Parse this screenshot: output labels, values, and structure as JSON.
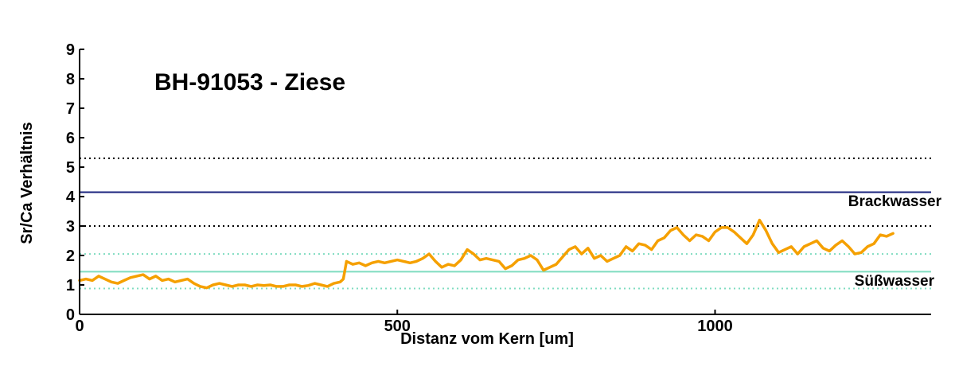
{
  "chart_data": {
    "type": "line",
    "title": "BH-91053 - Ziese",
    "xlabel": "Distanz vom Kern [um]",
    "ylabel": "Sr/Ca Verhältnis",
    "xlim": [
      0,
      1340
    ],
    "ylim": [
      0,
      9
    ],
    "x_ticks": [
      0,
      500,
      1000
    ],
    "y_ticks": [
      0,
      1,
      2,
      3,
      4,
      5,
      6,
      7,
      8,
      9
    ],
    "grid": false,
    "reference_lines": [
      {
        "name": "brackish_mean",
        "y": 4.15,
        "style": "solid",
        "color": "#1a237e"
      },
      {
        "name": "brackish_upper",
        "y": 5.3,
        "style": "dotted",
        "color": "#000000"
      },
      {
        "name": "brackish_lower",
        "y": 3.0,
        "style": "dotted",
        "color": "#000000"
      },
      {
        "name": "freshwater_mean",
        "y": 1.45,
        "style": "solid",
        "color": "#7fdcc0"
      },
      {
        "name": "freshwater_upper",
        "y": 2.05,
        "style": "dotted",
        "color": "#7fdcc0"
      },
      {
        "name": "freshwater_lower",
        "y": 0.88,
        "style": "dotted",
        "color": "#7fdcc0"
      }
    ],
    "region_labels": [
      "Brackwasser",
      "Süßwasser"
    ],
    "series": [
      {
        "color": "#f5a000",
        "x": [
          0,
          10,
          20,
          30,
          40,
          50,
          60,
          70,
          80,
          90,
          100,
          110,
          120,
          130,
          140,
          150,
          160,
          170,
          180,
          190,
          200,
          210,
          220,
          230,
          240,
          250,
          260,
          270,
          280,
          290,
          300,
          310,
          320,
          330,
          340,
          350,
          360,
          370,
          380,
          390,
          400,
          410,
          415,
          420,
          425,
          430,
          440,
          450,
          460,
          470,
          480,
          490,
          500,
          510,
          520,
          530,
          540,
          550,
          560,
          570,
          580,
          590,
          600,
          610,
          620,
          630,
          640,
          650,
          660,
          670,
          680,
          690,
          700,
          710,
          720,
          730,
          740,
          750,
          760,
          770,
          780,
          790,
          800,
          810,
          820,
          830,
          840,
          850,
          860,
          870,
          880,
          890,
          900,
          910,
          920,
          930,
          940,
          950,
          960,
          970,
          980,
          990,
          1000,
          1010,
          1020,
          1030,
          1040,
          1050,
          1060,
          1070,
          1080,
          1090,
          1100,
          1110,
          1120,
          1130,
          1140,
          1150,
          1160,
          1170,
          1180,
          1190,
          1200,
          1210,
          1220,
          1230,
          1240,
          1250,
          1260,
          1270,
          1280
        ],
        "values": [
          1.15,
          1.2,
          1.15,
          1.3,
          1.2,
          1.1,
          1.05,
          1.15,
          1.25,
          1.3,
          1.35,
          1.2,
          1.3,
          1.15,
          1.2,
          1.1,
          1.15,
          1.2,
          1.05,
          0.95,
          0.9,
          1.0,
          1.05,
          1.0,
          0.95,
          1.0,
          1.0,
          0.95,
          1.0,
          0.98,
          1.0,
          0.95,
          0.95,
          1.0,
          1.0,
          0.95,
          0.98,
          1.05,
          1.0,
          0.95,
          1.05,
          1.1,
          1.2,
          1.8,
          1.75,
          1.7,
          1.75,
          1.65,
          1.75,
          1.8,
          1.75,
          1.8,
          1.85,
          1.8,
          1.75,
          1.8,
          1.9,
          2.05,
          1.8,
          1.6,
          1.7,
          1.65,
          1.85,
          2.2,
          2.05,
          1.85,
          1.9,
          1.85,
          1.8,
          1.55,
          1.65,
          1.85,
          1.9,
          2.0,
          1.85,
          1.5,
          1.6,
          1.7,
          1.95,
          2.2,
          2.3,
          2.05,
          2.25,
          1.9,
          2.0,
          1.8,
          1.9,
          2.0,
          2.3,
          2.15,
          2.4,
          2.35,
          2.2,
          2.5,
          2.6,
          2.85,
          2.95,
          2.7,
          2.5,
          2.7,
          2.65,
          2.5,
          2.8,
          2.95,
          2.95,
          2.8,
          2.6,
          2.4,
          2.7,
          3.2,
          2.85,
          2.4,
          2.1,
          2.2,
          2.3,
          2.05,
          2.3,
          2.4,
          2.5,
          2.25,
          2.15,
          2.35,
          2.5,
          2.3,
          2.05,
          2.1,
          2.3,
          2.4,
          2.7,
          2.65,
          2.75
        ]
      }
    ]
  }
}
